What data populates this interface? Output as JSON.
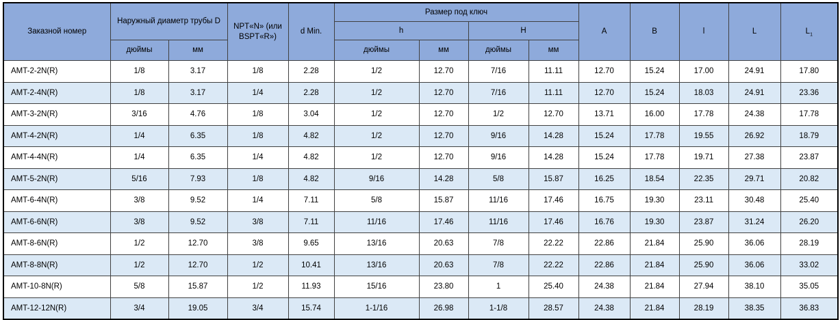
{
  "table": {
    "headers": {
      "order_number": "Заказной номер",
      "outer_diameter": "Наружный диаметр трубы D",
      "npt": "NPT«N» (или BSPT«R»)",
      "d_min": "d Min.",
      "wrench_size": "Размер под ключ",
      "h_lower": "h",
      "h_upper": "H",
      "inches": "дюймы",
      "mm": "мм",
      "a": "A",
      "b": "B",
      "l_small": "l",
      "l_big": "L",
      "l1_base": "L",
      "l1_sub": "1"
    },
    "rows": [
      [
        "AMT-2-2N(R)",
        "1/8",
        "3.17",
        "1/8",
        "2.28",
        "1/2",
        "12.70",
        "7/16",
        "11.11",
        "12.70",
        "15.24",
        "17.00",
        "24.91",
        "17.80"
      ],
      [
        "AMT-2-4N(R)",
        "1/8",
        "3.17",
        "1/4",
        "2.28",
        "1/2",
        "12.70",
        "7/16",
        "11.11",
        "12.70",
        "15.24",
        "18.03",
        "24.91",
        "23.36"
      ],
      [
        "AMT-3-2N(R)",
        "3/16",
        "4.76",
        "1/8",
        "3.04",
        "1/2",
        "12.70",
        "1/2",
        "12.70",
        "13.71",
        "16.00",
        "17.78",
        "24.38",
        "17.78"
      ],
      [
        "AMT-4-2N(R)",
        "1/4",
        "6.35",
        "1/8",
        "4.82",
        "1/2",
        "12.70",
        "9/16",
        "14.28",
        "15.24",
        "17.78",
        "19.55",
        "26.92",
        "18.79"
      ],
      [
        "AMT-4-4N(R)",
        "1/4",
        "6.35",
        "1/4",
        "4.82",
        "1/2",
        "12.70",
        "9/16",
        "14.28",
        "15.24",
        "17.78",
        "19.71",
        "27.38",
        "23.87"
      ],
      [
        "AMT-5-2N(R)",
        "5/16",
        "7.93",
        "1/8",
        "4.82",
        "9/16",
        "14.28",
        "5/8",
        "15.87",
        "16.25",
        "18.54",
        "22.35",
        "29.71",
        "20.82"
      ],
      [
        "AMT-6-4N(R)",
        "3/8",
        "9.52",
        "1/4",
        "7.11",
        "5/8",
        "15.87",
        "11/16",
        "17.46",
        "16.75",
        "19.30",
        "23.11",
        "30.48",
        "25.40"
      ],
      [
        "AMT-6-6N(R)",
        "3/8",
        "9.52",
        "3/8",
        "7.11",
        "11/16",
        "17.46",
        "11/16",
        "17.46",
        "16.76",
        "19.30",
        "23.87",
        "31.24",
        "26.20"
      ],
      [
        "AMT-8-6N(R)",
        "1/2",
        "12.70",
        "3/8",
        "9.65",
        "13/16",
        "20.63",
        "7/8",
        "22.22",
        "22.86",
        "21.84",
        "25.90",
        "36.06",
        "28.19"
      ],
      [
        "AMT-8-8N(R)",
        "1/2",
        "12.70",
        "1/2",
        "10.41",
        "13/16",
        "20.63",
        "7/8",
        "22.22",
        "22.86",
        "21.84",
        "25.90",
        "36.06",
        "33.02"
      ],
      [
        "AMT-10-8N(R)",
        "5/8",
        "15.87",
        "1/2",
        "11.93",
        "15/16",
        "23.80",
        "1",
        "25.40",
        "24.38",
        "21.84",
        "27.94",
        "38.10",
        "35.05"
      ],
      [
        "AMT-12-12N(R)",
        "3/4",
        "19.05",
        "3/4",
        "15.74",
        "1-1/16",
        "26.98",
        "1-1/8",
        "28.57",
        "24.38",
        "21.84",
        "28.19",
        "38.35",
        "36.83"
      ]
    ]
  },
  "colors": {
    "header_bg": "#8EAADB",
    "band_bg": "#DBE9F6",
    "border": "#404040",
    "outer_border": "#000000"
  }
}
